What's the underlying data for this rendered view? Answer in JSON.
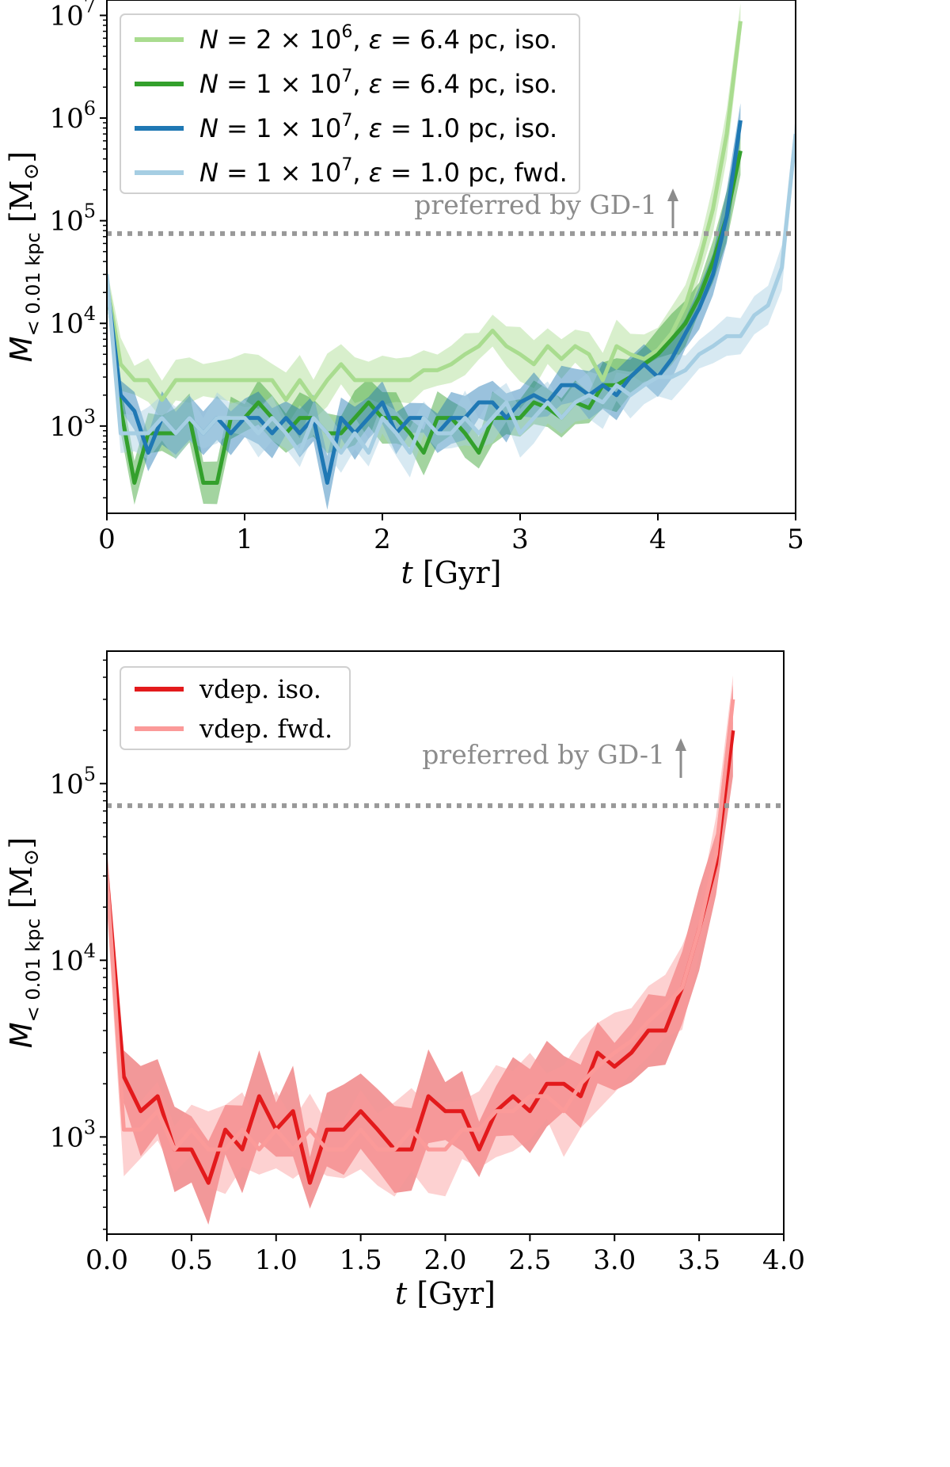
{
  "chart_data": [
    {
      "type": "line",
      "title": "",
      "xlabel": "t [Gyr]",
      "ylabel": "M_{<0.01 kpc} [M⊙]",
      "ylabel_parts": {
        "symbol": "M",
        "subscript": "< 0.01 kpc",
        "unit": "[M",
        "unit_sub": "⊙",
        "unit_close": "]"
      },
      "xlabel_parts": {
        "symbol": "t",
        "unit": " [Gyr]"
      },
      "xlim": [
        0,
        5
      ],
      "ylim_log10": [
        2.15,
        7.15
      ],
      "yscale": "log",
      "xticks": [
        0,
        1,
        2,
        3,
        4,
        5
      ],
      "xtick_labels": [
        "0",
        "1",
        "2",
        "3",
        "4",
        "5"
      ],
      "yticks_log10": [
        3,
        4,
        5,
        6,
        7
      ],
      "ytick_labels": [
        [
          "10",
          "3"
        ],
        [
          "10",
          "4"
        ],
        [
          "10",
          "5"
        ],
        [
          "10",
          "6"
        ],
        [
          "10",
          "7"
        ]
      ],
      "legend_position": "top-left",
      "reference_line": {
        "y": 75000,
        "style": "dotted",
        "color": "#999999",
        "label": "preferred by GD-1",
        "arrow": "up",
        "arrow_x": 4.0
      },
      "series": [
        {
          "name": "N = 2 × 10^6, ε = 6.4 pc, iso.",
          "legend_parts": [
            "N",
            " = 2 × 10",
            "6",
            ", ",
            "ε",
            " = 6.4 pc, iso."
          ],
          "color": "#a9dc8f",
          "x": [
            0,
            0.1,
            0.2,
            0.3,
            0.4,
            0.5,
            0.6,
            0.7,
            0.8,
            0.9,
            1.0,
            1.1,
            1.2,
            1.3,
            1.4,
            1.5,
            1.6,
            1.7,
            1.8,
            1.9,
            2.0,
            2.1,
            2.2,
            2.3,
            2.4,
            2.5,
            2.6,
            2.7,
            2.8,
            2.9,
            3.0,
            3.1,
            3.2,
            3.3,
            3.4,
            3.5,
            3.6,
            3.7,
            3.8,
            3.9,
            4.0,
            4.1,
            4.2,
            4.3,
            4.4,
            4.5,
            4.6
          ],
          "y": [
            25000,
            4000,
            2800,
            2800,
            1800,
            2800,
            2800,
            2800,
            2800,
            2800,
            2800,
            2800,
            2800,
            1800,
            2800,
            1800,
            2800,
            4000,
            2800,
            2800,
            2800,
            2800,
            2800,
            3500,
            3500,
            4000,
            5000,
            6000,
            8500,
            6000,
            5000,
            4000,
            6000,
            4500,
            6000,
            5000,
            2800,
            6000,
            5000,
            4500,
            5500,
            8000,
            15000,
            40000,
            130000,
            700000,
            8800000
          ]
        },
        {
          "name": "N = 1 × 10^7, ε = 6.4 pc, iso.",
          "legend_parts": [
            "N",
            " = 1 × 10",
            "7",
            ", ",
            "ε",
            " = 6.4 pc, iso."
          ],
          "color": "#33a02c",
          "x": [
            0,
            0.1,
            0.2,
            0.3,
            0.4,
            0.5,
            0.6,
            0.7,
            0.8,
            0.9,
            1.0,
            1.1,
            1.2,
            1.3,
            1.4,
            1.5,
            1.6,
            1.7,
            1.8,
            1.9,
            2.0,
            2.1,
            2.2,
            2.3,
            2.4,
            2.5,
            2.6,
            2.7,
            2.8,
            2.9,
            3.0,
            3.1,
            3.2,
            3.3,
            3.4,
            3.5,
            3.6,
            3.7,
            3.8,
            3.9,
            4.0,
            4.1,
            4.2,
            4.3,
            4.4,
            4.5,
            4.6
          ],
          "y": [
            25000,
            1500,
            280,
            850,
            850,
            850,
            1200,
            280,
            280,
            1200,
            1200,
            1700,
            1200,
            850,
            1200,
            1200,
            850,
            850,
            1200,
            1700,
            1200,
            1200,
            850,
            550,
            1200,
            1200,
            850,
            550,
            1200,
            1200,
            1200,
            1700,
            1500,
            1200,
            1700,
            1500,
            2500,
            2500,
            3000,
            4000,
            5000,
            7000,
            10000,
            18000,
            40000,
            110000,
            480000
          ]
        },
        {
          "name": "N = 1 × 10^7, ε = 1.0 pc, iso.",
          "legend_parts": [
            "N",
            " = 1 × 10",
            "7",
            ", ",
            "ε",
            " = 1.0 pc, iso."
          ],
          "color": "#1f78b4",
          "x": [
            0,
            0.1,
            0.2,
            0.3,
            0.4,
            0.5,
            0.6,
            0.7,
            0.8,
            0.9,
            1.0,
            1.1,
            1.2,
            1.3,
            1.4,
            1.5,
            1.6,
            1.7,
            1.8,
            1.9,
            2.0,
            2.1,
            2.2,
            2.3,
            2.4,
            2.5,
            2.6,
            2.7,
            2.8,
            2.9,
            3.0,
            3.1,
            3.2,
            3.3,
            3.4,
            3.5,
            3.6,
            3.7,
            3.8,
            3.9,
            4.0,
            4.1,
            4.2,
            4.3,
            4.4,
            4.5,
            4.6
          ],
          "y": [
            25000,
            2000,
            1400,
            550,
            1200,
            850,
            1200,
            850,
            1200,
            850,
            1200,
            1200,
            850,
            1200,
            850,
            1200,
            280,
            1200,
            850,
            1200,
            1700,
            850,
            1200,
            1200,
            850,
            1200,
            1200,
            1700,
            1700,
            1200,
            1700,
            2000,
            1700,
            2500,
            2500,
            2000,
            2500,
            2000,
            3000,
            4000,
            3000,
            4500,
            8000,
            14000,
            30000,
            110000,
            950000
          ]
        },
        {
          "name": "N = 1 × 10^7, ε = 1.0 pc, fwd.",
          "legend_parts": [
            "N",
            " = 1 × 10",
            "7",
            ", ",
            "ε",
            " = 1.0 pc, fwd."
          ],
          "color": "#a6cee3",
          "x": [
            0,
            0.1,
            0.2,
            0.3,
            0.4,
            0.5,
            0.6,
            0.7,
            0.8,
            0.9,
            1.0,
            1.1,
            1.2,
            1.3,
            1.4,
            1.5,
            1.6,
            1.7,
            1.8,
            1.9,
            2.0,
            2.1,
            2.2,
            2.3,
            2.4,
            2.5,
            2.6,
            2.7,
            2.8,
            2.9,
            3.0,
            3.1,
            3.2,
            3.3,
            3.4,
            3.5,
            3.6,
            3.7,
            3.8,
            3.9,
            4.0,
            4.1,
            4.2,
            4.3,
            4.4,
            4.5,
            4.6,
            4.7,
            4.8,
            4.9,
            5.0
          ],
          "y": [
            30000,
            850,
            850,
            850,
            1200,
            850,
            1200,
            850,
            1200,
            1200,
            1200,
            850,
            1200,
            850,
            550,
            1200,
            850,
            550,
            850,
            550,
            1200,
            850,
            550,
            1200,
            850,
            850,
            1200,
            850,
            1200,
            1700,
            850,
            1200,
            1700,
            1200,
            1700,
            2000,
            1700,
            2500,
            2000,
            2500,
            3000,
            3000,
            3500,
            5000,
            6000,
            7500,
            7500,
            12000,
            15000,
            35000,
            700000
          ]
        }
      ]
    },
    {
      "type": "line",
      "title": "",
      "xlabel": "t [Gyr]",
      "ylabel": "M_{<0.01 kpc} [M⊙]",
      "ylabel_parts": {
        "symbol": "M",
        "subscript": "< 0.01 kpc",
        "unit": "[M",
        "unit_sub": "⊙",
        "unit_close": "]"
      },
      "xlabel_parts": {
        "symbol": "t",
        "unit": " [Gyr]"
      },
      "xlim": [
        0,
        4
      ],
      "ylim_log10": [
        2.45,
        5.75
      ],
      "yscale": "log",
      "xticks": [
        0,
        0.5,
        1.0,
        1.5,
        2.0,
        2.5,
        3.0,
        3.5,
        4.0
      ],
      "xtick_labels": [
        "0.0",
        "0.5",
        "1.0",
        "1.5",
        "2.0",
        "2.5",
        "3.0",
        "3.5",
        "4.0"
      ],
      "yticks_log10": [
        3,
        4,
        5
      ],
      "ytick_labels": [
        [
          "10",
          "3"
        ],
        [
          "10",
          "4"
        ],
        [
          "10",
          "5"
        ]
      ],
      "legend_position": "top-left",
      "reference_line": {
        "y": 75000,
        "style": "dotted",
        "color": "#999999",
        "label": "preferred by GD-1",
        "arrow": "up",
        "arrow_x": 3.3
      },
      "series": [
        {
          "name": "vdep. iso.",
          "legend_parts": [
            "vdep. iso."
          ],
          "color": "#e31a1c",
          "x": [
            0,
            0.1,
            0.2,
            0.3,
            0.4,
            0.5,
            0.6,
            0.7,
            0.8,
            0.9,
            1.0,
            1.1,
            1.2,
            1.3,
            1.4,
            1.5,
            1.6,
            1.7,
            1.8,
            1.9,
            2.0,
            2.1,
            2.2,
            2.3,
            2.4,
            2.5,
            2.6,
            2.7,
            2.8,
            2.9,
            3.0,
            3.1,
            3.2,
            3.3,
            3.4,
            3.5,
            3.6,
            3.7
          ],
          "y": [
            30000,
            2200,
            1400,
            1700,
            850,
            850,
            550,
            1100,
            850,
            1700,
            1100,
            1400,
            550,
            1100,
            1100,
            1400,
            1100,
            850,
            850,
            1700,
            1400,
            1400,
            850,
            1400,
            1700,
            1400,
            2000,
            2000,
            1700,
            3000,
            2500,
            3000,
            4000,
            4000,
            7000,
            15000,
            35000,
            200000
          ]
        },
        {
          "name": "vdep. fwd.",
          "legend_parts": [
            "vdep. fwd."
          ],
          "color": "#fb9a99",
          "x": [
            0,
            0.1,
            0.2,
            0.3,
            0.4,
            0.5,
            0.6,
            0.7,
            0.8,
            0.9,
            1.0,
            1.1,
            1.2,
            1.3,
            1.4,
            1.5,
            1.6,
            1.7,
            1.8,
            1.9,
            2.0,
            2.1,
            2.2,
            2.3,
            2.4,
            2.5,
            2.6,
            2.7,
            2.8,
            2.9,
            3.0,
            3.1,
            3.2,
            3.3,
            3.4,
            3.5,
            3.6,
            3.7
          ],
          "y": [
            30000,
            1100,
            1100,
            1400,
            850,
            1100,
            850,
            850,
            1100,
            850,
            1100,
            850,
            1100,
            850,
            850,
            1100,
            850,
            850,
            1100,
            850,
            850,
            1100,
            1100,
            1400,
            1400,
            1700,
            1700,
            1400,
            2000,
            2500,
            3000,
            3500,
            4500,
            5500,
            7000,
            15000,
            40000,
            300000
          ]
        }
      ]
    }
  ]
}
